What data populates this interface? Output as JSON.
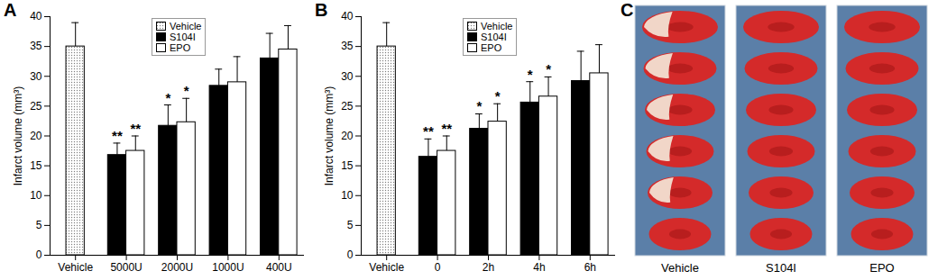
{
  "chart_data": [
    {
      "type": "bar",
      "panel": "A",
      "categories": [
        "Vehicle",
        "5000U",
        "2000U",
        "1000U",
        "400U"
      ],
      "series": [
        {
          "name": "Vehicle",
          "color": "#7f7f7f",
          "marker": "dots",
          "values": [
            35,
            null,
            null,
            null,
            null
          ],
          "errors": [
            4,
            null,
            null,
            null,
            null
          ],
          "significance": [
            null,
            null,
            null,
            null,
            null
          ]
        },
        {
          "name": "S104I",
          "color": "#000000",
          "values": [
            null,
            16.8,
            21.7,
            28.4,
            33.0
          ],
          "errors": [
            null,
            2.0,
            3.5,
            2.8,
            4.2
          ],
          "significance": [
            null,
            "**",
            "*",
            null,
            null
          ]
        },
        {
          "name": "EPO",
          "color": "#ffffff",
          "values": [
            null,
            17.5,
            22.3,
            29.0,
            34.5
          ],
          "errors": [
            null,
            2.5,
            4.0,
            4.3,
            4.0
          ],
          "significance": [
            null,
            "**",
            "*",
            null,
            null
          ]
        }
      ],
      "y_label": "Infarct volume (mm³)",
      "ylim": [
        0,
        40
      ],
      "yticks": [
        0,
        5,
        10,
        15,
        20,
        25,
        30,
        35,
        40
      ],
      "legend": "top"
    },
    {
      "type": "bar",
      "panel": "B",
      "categories": [
        "Vehicle",
        "0",
        "2h",
        "4h",
        "6h"
      ],
      "series": [
        {
          "name": "Vehicle",
          "color": "#7f7f7f",
          "marker": "dots",
          "values": [
            35,
            null,
            null,
            null,
            null
          ],
          "errors": [
            4,
            null,
            null,
            null,
            null
          ],
          "significance": [
            null,
            null,
            null,
            null,
            null
          ]
        },
        {
          "name": "S104I",
          "color": "#000000",
          "values": [
            null,
            16.5,
            21.2,
            25.6,
            29.2
          ],
          "errors": [
            null,
            3.0,
            2.5,
            3.5,
            5.0
          ],
          "significance": [
            null,
            "**",
            "*",
            "*",
            null
          ]
        },
        {
          "name": "EPO",
          "color": "#ffffff",
          "values": [
            null,
            17.5,
            22.4,
            26.6,
            30.5
          ],
          "errors": [
            null,
            2.5,
            3.0,
            3.3,
            4.8
          ],
          "significance": [
            null,
            "**",
            "*",
            "*",
            null
          ]
        }
      ],
      "y_label": "Infarct volume (mm³)",
      "ylim": [
        0,
        40
      ],
      "yticks": [
        0,
        5,
        10,
        15,
        20,
        25,
        30,
        35,
        40
      ],
      "legend": "top"
    }
  ],
  "image_panel": {
    "panel": "C",
    "labels": [
      "Vehicle",
      "S104I",
      "EPO"
    ]
  }
}
